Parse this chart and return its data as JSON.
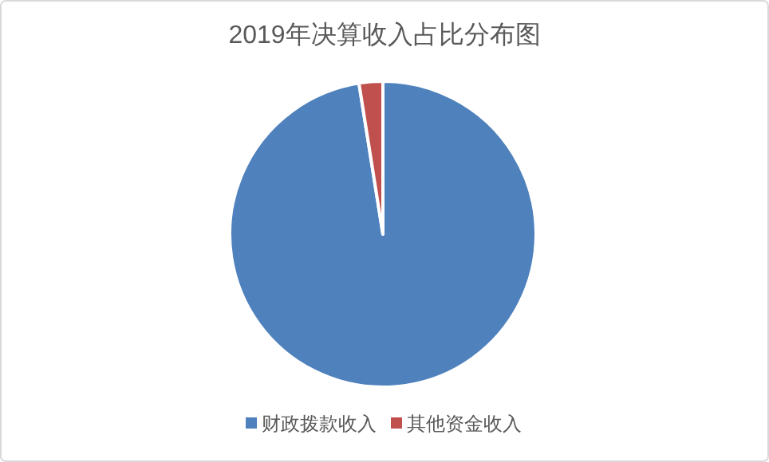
{
  "chart_data": {
    "type": "pie",
    "title": "2019年决算收入占比分布图",
    "categories": [
      "财政拨款收入",
      "其他资金收入"
    ],
    "values": [
      97.5,
      2.5
    ],
    "colors": [
      "#4f81bd",
      "#c0504d"
    ],
    "legend": "bottom"
  }
}
